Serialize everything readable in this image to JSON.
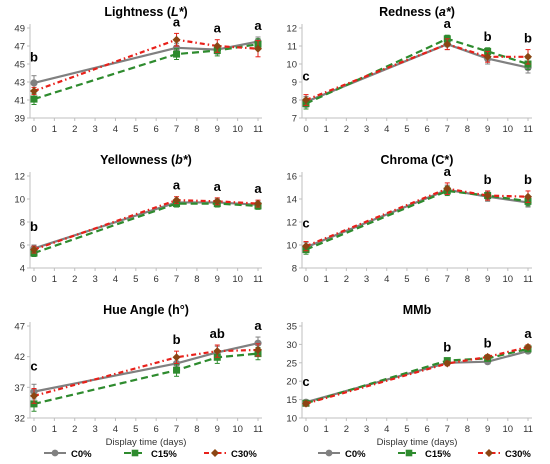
{
  "colors": {
    "c0": "#808080",
    "c15": "#2e8b2e",
    "c30": "#e8201a",
    "c30_secondary": "#8b4513",
    "axis": "#bfbfbf"
  },
  "chart_data": [
    {
      "type": "line",
      "title_parts": [
        "Lightness (",
        "L*",
        ")"
      ],
      "x": [
        0,
        7,
        9,
        11
      ],
      "xticks": [
        0,
        1,
        2,
        3,
        4,
        5,
        6,
        7,
        8,
        9,
        10,
        11
      ],
      "ylim": [
        39,
        49
      ],
      "yticks": [
        39,
        41,
        43,
        45,
        47,
        49
      ],
      "xlabel": "",
      "series": [
        {
          "name": "C0%",
          "values": [
            42.9,
            46.8,
            46.6,
            47.5
          ],
          "err": [
            0.8,
            0.5,
            0.5,
            0.5
          ]
        },
        {
          "name": "C15%",
          "values": [
            41.1,
            46.1,
            46.5,
            47.2
          ],
          "err": [
            0.6,
            0.6,
            0.6,
            0.6
          ]
        },
        {
          "name": "C30%",
          "values": [
            42.0,
            47.7,
            47.0,
            46.7
          ],
          "err": [
            0.4,
            0.7,
            0.7,
            0.9
          ]
        }
      ],
      "annotations": [
        {
          "x": 0,
          "text": "b"
        },
        {
          "x": 7,
          "text": "a"
        },
        {
          "x": 9,
          "text": "a"
        },
        {
          "x": 11,
          "text": "a"
        }
      ]
    },
    {
      "type": "line",
      "title_parts": [
        "Redness (",
        "a*",
        ")"
      ],
      "x": [
        0,
        7,
        9,
        11
      ],
      "xticks": [
        0,
        1,
        2,
        3,
        4,
        5,
        6,
        7,
        8,
        9,
        10,
        11
      ],
      "ylim": [
        7,
        12
      ],
      "yticks": [
        7,
        8,
        9,
        10,
        11,
        12
      ],
      "xlabel": "",
      "series": [
        {
          "name": "C0%",
          "values": [
            7.9,
            11.1,
            10.3,
            9.8
          ],
          "err": [
            0.3,
            0.3,
            0.3,
            0.3
          ]
        },
        {
          "name": "C15%",
          "values": [
            7.8,
            11.4,
            10.7,
            10.0
          ],
          "err": [
            0.3,
            0.2,
            0.2,
            0.3
          ]
        },
        {
          "name": "C30%",
          "values": [
            8.0,
            11.1,
            10.4,
            10.4
          ],
          "err": [
            0.3,
            0.3,
            0.3,
            0.4
          ]
        }
      ],
      "annotations": [
        {
          "x": 0,
          "text": "c"
        },
        {
          "x": 7,
          "text": "a"
        },
        {
          "x": 9,
          "text": "b"
        },
        {
          "x": 11,
          "text": "b"
        }
      ]
    },
    {
      "type": "line",
      "title_parts": [
        "Yellowness (",
        "b*",
        ")"
      ],
      "x": [
        0,
        7,
        9,
        11
      ],
      "xticks": [
        0,
        1,
        2,
        3,
        4,
        5,
        6,
        7,
        8,
        9,
        10,
        11
      ],
      "ylim": [
        4,
        12
      ],
      "yticks": [
        4,
        6,
        8,
        10,
        12
      ],
      "xlabel": "",
      "series": [
        {
          "name": "C0%",
          "values": [
            5.7,
            9.7,
            9.7,
            9.5
          ],
          "err": [
            0.3,
            0.3,
            0.3,
            0.3
          ]
        },
        {
          "name": "C15%",
          "values": [
            5.3,
            9.6,
            9.6,
            9.4
          ],
          "err": [
            0.3,
            0.3,
            0.3,
            0.3
          ]
        },
        {
          "name": "C30%",
          "values": [
            5.6,
            9.9,
            9.8,
            9.6
          ],
          "err": [
            0.3,
            0.3,
            0.3,
            0.3
          ]
        }
      ],
      "annotations": [
        {
          "x": 0,
          "text": "b"
        },
        {
          "x": 7,
          "text": "a"
        },
        {
          "x": 9,
          "text": "a"
        },
        {
          "x": 11,
          "text": "a"
        }
      ]
    },
    {
      "type": "line",
      "title_parts": [
        "Chroma (C*)"
      ],
      "x": [
        0,
        7,
        9,
        11
      ],
      "xticks": [
        0,
        1,
        2,
        3,
        4,
        5,
        6,
        7,
        8,
        9,
        10,
        11
      ],
      "ylim": [
        8,
        16
      ],
      "yticks": [
        8,
        10,
        12,
        14,
        16
      ],
      "xlabel": "",
      "series": [
        {
          "name": "C0%",
          "values": [
            9.8,
            14.8,
            14.2,
            13.7
          ],
          "err": [
            0.4,
            0.4,
            0.4,
            0.4
          ]
        },
        {
          "name": "C15%",
          "values": [
            9.6,
            14.7,
            14.3,
            13.8
          ],
          "err": [
            0.4,
            0.4,
            0.4,
            0.4
          ]
        },
        {
          "name": "C30%",
          "values": [
            9.9,
            14.9,
            14.3,
            14.2
          ],
          "err": [
            0.4,
            0.5,
            0.4,
            0.5
          ]
        }
      ],
      "annotations": [
        {
          "x": 0,
          "text": "c"
        },
        {
          "x": 7,
          "text": "a"
        },
        {
          "x": 9,
          "text": "b"
        },
        {
          "x": 11,
          "text": "b"
        }
      ]
    },
    {
      "type": "line",
      "title_parts": [
        "Hue Angle (h°)"
      ],
      "x": [
        0,
        7,
        9,
        11
      ],
      "xticks": [
        0,
        1,
        2,
        3,
        4,
        5,
        6,
        7,
        8,
        9,
        10,
        11
      ],
      "ylim": [
        32,
        47
      ],
      "yticks": [
        32,
        37,
        42,
        47
      ],
      "xlabel": "Display time (days)",
      "series": [
        {
          "name": "C0%",
          "values": [
            36.3,
            40.9,
            42.7,
            44.2
          ],
          "err": [
            1.2,
            1.0,
            1.0,
            1.0
          ]
        },
        {
          "name": "C15%",
          "values": [
            34.3,
            39.8,
            41.9,
            42.5
          ],
          "err": [
            1.2,
            1.0,
            1.0,
            1.0
          ]
        },
        {
          "name": "C30%",
          "values": [
            35.6,
            41.9,
            42.9,
            43.1
          ],
          "err": [
            1.2,
            1.0,
            1.0,
            1.0
          ]
        }
      ],
      "annotations": [
        {
          "x": 0,
          "text": "c"
        },
        {
          "x": 7,
          "text": "b"
        },
        {
          "x": 9,
          "text": "ab"
        },
        {
          "x": 11,
          "text": "a"
        }
      ]
    },
    {
      "type": "line",
      "title_parts": [
        "MMb"
      ],
      "x": [
        0,
        7,
        9,
        11
      ],
      "xticks": [
        0,
        1,
        2,
        3,
        4,
        5,
        6,
        7,
        8,
        9,
        10,
        11
      ],
      "ylim": [
        10,
        35
      ],
      "yticks": [
        10,
        15,
        20,
        25,
        30,
        35
      ],
      "xlabel": "Display time (days)",
      "series": [
        {
          "name": "C0%",
          "values": [
            14.3,
            25.0,
            25.3,
            28.2
          ],
          "err": [
            0.6,
            0.6,
            0.6,
            0.6
          ]
        },
        {
          "name": "C15%",
          "values": [
            14.0,
            25.6,
            26.2,
            28.8
          ],
          "err": [
            0.6,
            0.6,
            0.6,
            0.6
          ]
        },
        {
          "name": "C30%",
          "values": [
            13.9,
            24.8,
            26.6,
            29.3
          ],
          "err": [
            0.6,
            0.6,
            0.6,
            0.6
          ]
        }
      ],
      "annotations": [
        {
          "x": 0,
          "text": "c"
        },
        {
          "x": 7,
          "text": "b"
        },
        {
          "x": 9,
          "text": "b"
        },
        {
          "x": 11,
          "text": "a"
        }
      ]
    }
  ],
  "legends": [
    {
      "items": [
        "C0%",
        "C15%",
        "C30%"
      ]
    },
    {
      "items": [
        "C0%",
        "C15%",
        "C30%"
      ]
    }
  ]
}
